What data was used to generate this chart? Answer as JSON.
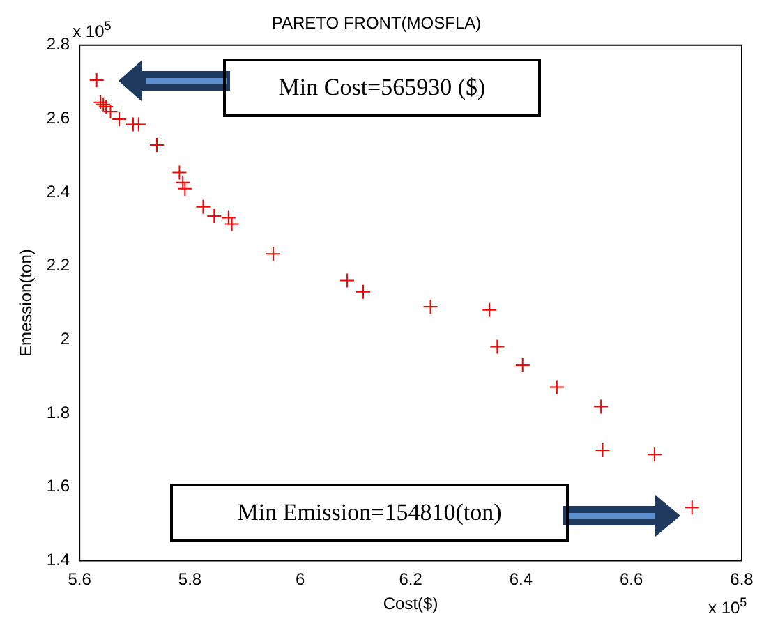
{
  "chart_data": {
    "type": "scatter",
    "title": "PARETO FRONT(MOSFLA)",
    "xlabel": "Cost($)",
    "ylabel": "Emession(ton)",
    "x": [
      5.631,
      5.638,
      5.643,
      5.648,
      5.656,
      5.672,
      5.697,
      5.707,
      5.74,
      5.781,
      5.787,
      5.791,
      5.824,
      5.844,
      5.87,
      5.876,
      5.951,
      6.085,
      6.114,
      6.236,
      6.343,
      6.357,
      6.403,
      6.465,
      6.545,
      6.548,
      6.642,
      6.71
    ],
    "series": [
      {
        "color": "#ff0000",
        "values": [
          2.705,
          2.645,
          2.639,
          2.633,
          2.62,
          2.599,
          2.585,
          2.585,
          2.529,
          2.454,
          2.427,
          2.41,
          2.361,
          2.336,
          2.331,
          2.314,
          2.233,
          2.161,
          2.13,
          2.09,
          2.081,
          1.981,
          1.931,
          1.871,
          1.818,
          1.7,
          1.688,
          1.544
        ]
      }
    ],
    "xlim": [
      5.6,
      6.8
    ],
    "xticks": [
      5.6,
      5.8,
      6,
      6.2,
      6.4,
      6.6,
      6.8
    ],
    "ylim": [
      1.4,
      2.8
    ],
    "yticks": [
      1.4,
      1.6,
      1.8,
      2,
      2.2,
      2.4,
      2.6,
      2.8
    ],
    "marker": "cross",
    "grid": false,
    "legend": false,
    "annotations": [
      "x 10$^{5}$",
      "x 10$^{5}$",
      "Min Cost=565930 ($)",
      "Min Emission=154810(ton)"
    ]
  }
}
